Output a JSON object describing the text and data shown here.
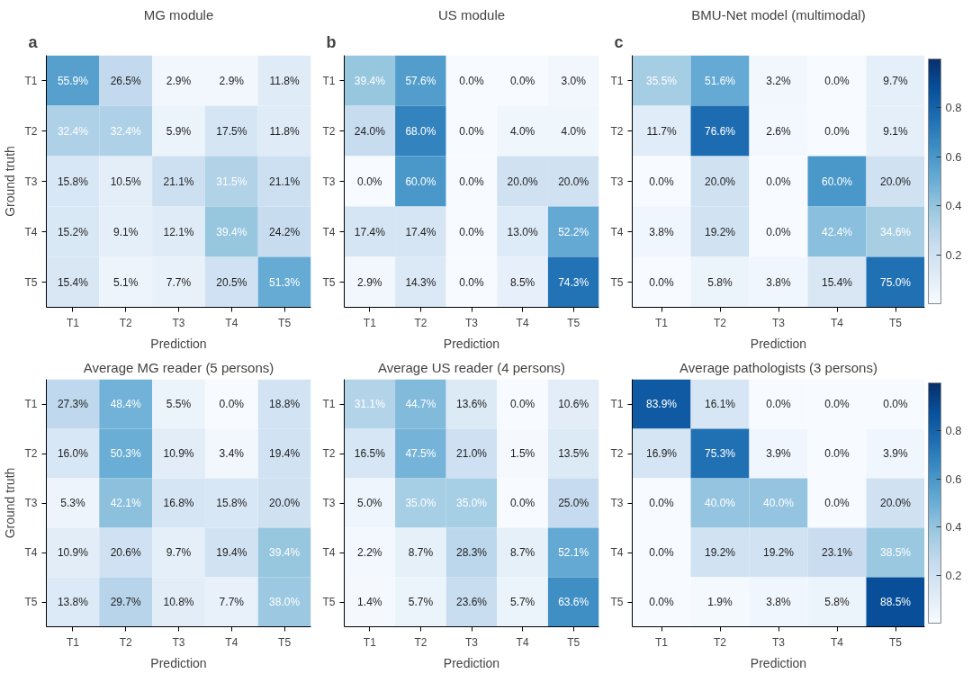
{
  "chart_data": [
    {
      "type": "heatmap",
      "title": "MG module",
      "xlabel": "Prediction",
      "ylabel": "Ground truth",
      "annotations": [
        "a"
      ],
      "categories": [
        "T1",
        "T2",
        "T3",
        "T4",
        "T5"
      ],
      "y_categories": [
        "T1",
        "T2",
        "T3",
        "T4",
        "T5"
      ],
      "cells": [
        [
          0.559,
          0.265,
          0.029,
          0.029,
          0.118
        ],
        [
          0.324,
          0.324,
          0.059,
          0.175,
          0.118
        ],
        [
          0.158,
          0.105,
          0.211,
          0.315,
          0.211
        ],
        [
          0.152,
          0.091,
          0.121,
          0.394,
          0.242
        ],
        [
          0.154,
          0.051,
          0.077,
          0.205,
          0.513
        ]
      ],
      "cell_labels": [
        [
          "55.9%",
          "26.5%",
          "2.9%",
          "2.9%",
          "11.8%"
        ],
        [
          "32.4%",
          "32.4%",
          "5.9%",
          "17.5%",
          "11.8%"
        ],
        [
          "15.8%",
          "10.5%",
          "21.1%",
          "31.5%",
          "21.1%"
        ],
        [
          "15.2%",
          "9.1%",
          "12.1%",
          "39.4%",
          "24.2%"
        ],
        [
          "15.4%",
          "5.1%",
          "7.7%",
          "20.5%",
          "51.3%"
        ]
      ]
    },
    {
      "type": "heatmap",
      "title": "US module",
      "xlabel": "Prediction",
      "annotations": [
        "b"
      ],
      "categories": [
        "T1",
        "T2",
        "T3",
        "T4",
        "T5"
      ],
      "y_categories": [
        "T1",
        "T2",
        "T3",
        "T4",
        "T5"
      ],
      "cells": [
        [
          0.394,
          0.576,
          0.0,
          0.0,
          0.03
        ],
        [
          0.24,
          0.68,
          0.0,
          0.04,
          0.04
        ],
        [
          0.0,
          0.6,
          0.0,
          0.2,
          0.2
        ],
        [
          0.174,
          0.174,
          0.0,
          0.13,
          0.522
        ],
        [
          0.029,
          0.143,
          0.0,
          0.085,
          0.743
        ]
      ],
      "cell_labels": [
        [
          "39.4%",
          "57.6%",
          "0.0%",
          "0.0%",
          "3.0%"
        ],
        [
          "24.0%",
          "68.0%",
          "0.0%",
          "4.0%",
          "4.0%"
        ],
        [
          "0.0%",
          "60.0%",
          "0.0%",
          "20.0%",
          "20.0%"
        ],
        [
          "17.4%",
          "17.4%",
          "0.0%",
          "13.0%",
          "52.2%"
        ],
        [
          "2.9%",
          "14.3%",
          "0.0%",
          "8.5%",
          "74.3%"
        ]
      ]
    },
    {
      "type": "heatmap",
      "title": "BMU-Net model (multimodal)",
      "xlabel": "Prediction",
      "annotations": [
        "c"
      ],
      "categories": [
        "T1",
        "T2",
        "T3",
        "T4",
        "T5"
      ],
      "y_categories": [
        "T1",
        "T2",
        "T3",
        "T4",
        "T5"
      ],
      "cells": [
        [
          0.355,
          0.516,
          0.032,
          0.0,
          0.097
        ],
        [
          0.117,
          0.766,
          0.026,
          0.0,
          0.091
        ],
        [
          0.0,
          0.2,
          0.0,
          0.6,
          0.2
        ],
        [
          0.038,
          0.192,
          0.0,
          0.424,
          0.346
        ],
        [
          0.0,
          0.058,
          0.038,
          0.154,
          0.75
        ]
      ],
      "cell_labels": [
        [
          "35.5%",
          "51.6%",
          "3.2%",
          "0.0%",
          "9.7%"
        ],
        [
          "11.7%",
          "76.6%",
          "2.6%",
          "0.0%",
          "9.1%"
        ],
        [
          "0.0%",
          "20.0%",
          "0.0%",
          "60.0%",
          "20.0%"
        ],
        [
          "3.8%",
          "19.2%",
          "0.0%",
          "42.4%",
          "34.6%"
        ],
        [
          "0.0%",
          "5.8%",
          "3.8%",
          "15.4%",
          "75.0%"
        ]
      ],
      "clim": [
        0,
        1
      ],
      "cticks": [
        0.2,
        0.4,
        0.6,
        0.8
      ]
    },
    {
      "type": "heatmap",
      "title": "Average MG reader (5 persons)",
      "xlabel": "Prediction",
      "ylabel": "Ground truth",
      "categories": [
        "T1",
        "T2",
        "T3",
        "T4",
        "T5"
      ],
      "y_categories": [
        "T1",
        "T2",
        "T3",
        "T4",
        "T5"
      ],
      "cells": [
        [
          0.273,
          0.484,
          0.055,
          0.0,
          0.188
        ],
        [
          0.16,
          0.503,
          0.109,
          0.034,
          0.194
        ],
        [
          0.053,
          0.421,
          0.168,
          0.158,
          0.2
        ],
        [
          0.109,
          0.206,
          0.097,
          0.194,
          0.394
        ],
        [
          0.138,
          0.297,
          0.108,
          0.077,
          0.38
        ]
      ],
      "cell_labels": [
        [
          "27.3%",
          "48.4%",
          "5.5%",
          "0.0%",
          "18.8%"
        ],
        [
          "16.0%",
          "50.3%",
          "10.9%",
          "3.4%",
          "19.4%"
        ],
        [
          "5.3%",
          "42.1%",
          "16.8%",
          "15.8%",
          "20.0%"
        ],
        [
          "10.9%",
          "20.6%",
          "9.7%",
          "19.4%",
          "39.4%"
        ],
        [
          "13.8%",
          "29.7%",
          "10.8%",
          "7.7%",
          "38.0%"
        ]
      ]
    },
    {
      "type": "heatmap",
      "title": "Average US reader (4 persons)",
      "xlabel": "Prediction",
      "categories": [
        "T1",
        "T2",
        "T3",
        "T4",
        "T5"
      ],
      "y_categories": [
        "T1",
        "T2",
        "T3",
        "T4",
        "T5"
      ],
      "cells": [
        [
          0.311,
          0.447,
          0.136,
          0.0,
          0.106
        ],
        [
          0.165,
          0.475,
          0.21,
          0.015,
          0.135
        ],
        [
          0.05,
          0.35,
          0.35,
          0.0,
          0.25
        ],
        [
          0.022,
          0.087,
          0.283,
          0.087,
          0.521
        ],
        [
          0.014,
          0.057,
          0.236,
          0.057,
          0.636
        ]
      ],
      "cell_labels": [
        [
          "31.1%",
          "44.7%",
          "13.6%",
          "0.0%",
          "10.6%"
        ],
        [
          "16.5%",
          "47.5%",
          "21.0%",
          "1.5%",
          "13.5%"
        ],
        [
          "5.0%",
          "35.0%",
          "35.0%",
          "0.0%",
          "25.0%"
        ],
        [
          "2.2%",
          "8.7%",
          "28.3%",
          "8.7%",
          "52.1%"
        ],
        [
          "1.4%",
          "5.7%",
          "23.6%",
          "5.7%",
          "63.6%"
        ]
      ]
    },
    {
      "type": "heatmap",
      "title": "Average pathologists (3 persons)",
      "xlabel": "Prediction",
      "categories": [
        "T1",
        "T2",
        "T3",
        "T4",
        "T5"
      ],
      "y_categories": [
        "T1",
        "T2",
        "T3",
        "T4",
        "T5"
      ],
      "cells": [
        [
          0.839,
          0.161,
          0.0,
          0.0,
          0.0
        ],
        [
          0.169,
          0.753,
          0.039,
          0.0,
          0.039
        ],
        [
          0.0,
          0.4,
          0.4,
          0.0,
          0.2
        ],
        [
          0.0,
          0.192,
          0.192,
          0.231,
          0.385
        ],
        [
          0.0,
          0.019,
          0.038,
          0.058,
          0.885
        ]
      ],
      "cell_labels": [
        [
          "83.9%",
          "16.1%",
          "0.0%",
          "0.0%",
          "0.0%"
        ],
        [
          "16.9%",
          "75.3%",
          "3.9%",
          "0.0%",
          "3.9%"
        ],
        [
          "0.0%",
          "40.0%",
          "40.0%",
          "0.0%",
          "20.0%"
        ],
        [
          "0.0%",
          "19.2%",
          "19.2%",
          "23.1%",
          "38.5%"
        ],
        [
          "0.0%",
          "1.9%",
          "3.8%",
          "5.8%",
          "88.5%"
        ]
      ],
      "clim": [
        0,
        1
      ],
      "cticks": [
        0.2,
        0.4,
        0.6,
        0.8
      ]
    }
  ]
}
